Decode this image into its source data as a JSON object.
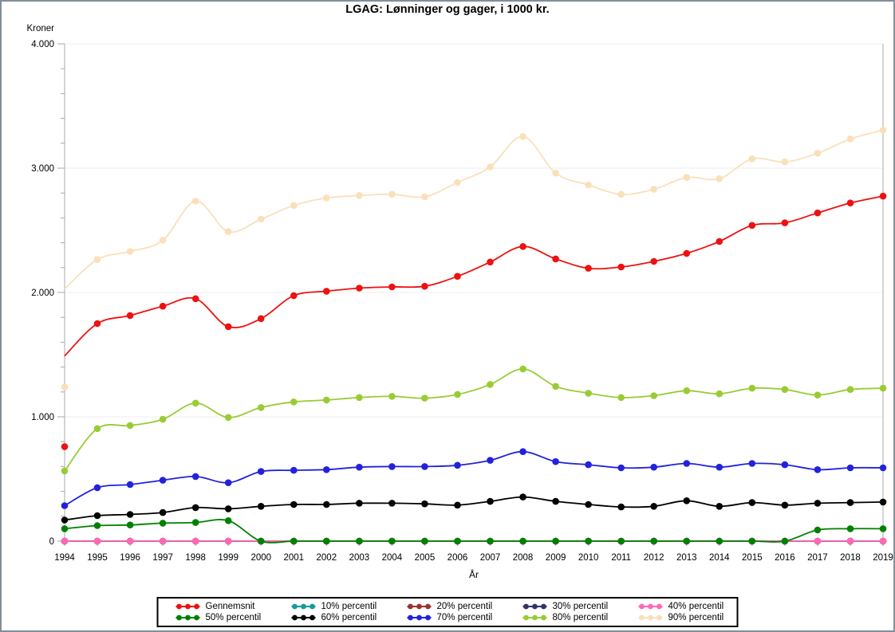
{
  "chart_data": {
    "type": "line",
    "title": "LGAG: Lønninger og gager, i 1000 kr.",
    "xlabel": "År",
    "ylabel": "Kroner",
    "x": [
      1994,
      1995,
      1996,
      1997,
      1998,
      1999,
      2000,
      2001,
      2002,
      2003,
      2004,
      2005,
      2006,
      2007,
      2008,
      2009,
      2010,
      2011,
      2012,
      2013,
      2014,
      2015,
      2016,
      2017,
      2018,
      2019
    ],
    "ylim": [
      0,
      4000
    ],
    "ytick_values": [
      0,
      1000,
      2000,
      3000,
      4000
    ],
    "ytick_labels": [
      "0",
      "1.000",
      "2.000",
      "3.000",
      "4.000"
    ],
    "minor_tick_step": 200,
    "grid": "horizontal-only",
    "gridline_color": "#ececec",
    "axis_color": "#a8a8a8",
    "frame_color": "#848e98",
    "legend_position": "bottom-center",
    "legend_columns": 5,
    "series": [
      {
        "name": "Gennemsnit",
        "color": "#ee1111",
        "values": [
          760,
          1750,
          1815,
          1890,
          1950,
          1725,
          1790,
          1975,
          2010,
          2035,
          2045,
          2050,
          2130,
          2245,
          2370,
          2270,
          2195,
          2205,
          2250,
          2315,
          2410,
          2540,
          2560,
          2640,
          2720,
          2775
        ],
        "line_start_1994": 1490
      },
      {
        "name": "10% percentil",
        "color": "#149a9a",
        "values": [
          0,
          0,
          0,
          0,
          0,
          0,
          0,
          0,
          0,
          0,
          0,
          0,
          0,
          0,
          0,
          0,
          0,
          0,
          0,
          0,
          0,
          0,
          0,
          0,
          0,
          0
        ]
      },
      {
        "name": "20% percentil",
        "color": "#993333",
        "values": [
          0,
          0,
          0,
          0,
          0,
          0,
          0,
          0,
          0,
          0,
          0,
          0,
          0,
          0,
          0,
          0,
          0,
          0,
          0,
          0,
          0,
          0,
          0,
          0,
          0,
          0
        ]
      },
      {
        "name": "30% percentil",
        "color": "#333366",
        "values": [
          0,
          0,
          0,
          0,
          0,
          0,
          0,
          0,
          0,
          0,
          0,
          0,
          0,
          0,
          0,
          0,
          0,
          0,
          0,
          0,
          0,
          0,
          0,
          0,
          0,
          0
        ]
      },
      {
        "name": "40% percentil",
        "color": "#ff69b4",
        "values": [
          0,
          0,
          0,
          0,
          0,
          0,
          0,
          0,
          0,
          0,
          0,
          0,
          0,
          0,
          0,
          0,
          0,
          0,
          0,
          0,
          0,
          0,
          0,
          0,
          0,
          0
        ]
      },
      {
        "name": "50% percentil",
        "color": "#008000",
        "values": [
          100,
          125,
          130,
          145,
          150,
          165,
          0,
          0,
          0,
          0,
          0,
          0,
          0,
          0,
          0,
          0,
          0,
          0,
          0,
          0,
          0,
          0,
          0,
          90,
          100,
          100
        ]
      },
      {
        "name": "60% percentil",
        "color": "#000000",
        "values": [
          170,
          205,
          215,
          230,
          270,
          260,
          280,
          295,
          295,
          305,
          305,
          300,
          290,
          320,
          355,
          320,
          295,
          275,
          280,
          325,
          280,
          310,
          290,
          305,
          310,
          315
        ]
      },
      {
        "name": "70% percentil",
        "color": "#2222dd",
        "values": [
          285,
          430,
          455,
          490,
          520,
          470,
          560,
          570,
          575,
          595,
          600,
          600,
          610,
          650,
          720,
          640,
          615,
          590,
          595,
          625,
          595,
          625,
          615,
          575,
          590,
          590
        ]
      },
      {
        "name": "80% percentil",
        "color": "#99cc33",
        "values": [
          565,
          905,
          930,
          980,
          1110,
          995,
          1075,
          1120,
          1135,
          1155,
          1165,
          1150,
          1180,
          1260,
          1385,
          1245,
          1190,
          1155,
          1170,
          1210,
          1185,
          1230,
          1220,
          1175,
          1220,
          1230
        ]
      },
      {
        "name": "90% percentil",
        "color": "#f9e0ba",
        "values": [
          1240,
          2265,
          2330,
          2420,
          2735,
          2490,
          2590,
          2700,
          2760,
          2780,
          2790,
          2770,
          2885,
          3010,
          3255,
          2960,
          2865,
          2790,
          2830,
          2925,
          2915,
          3075,
          3050,
          3120,
          3235,
          3305
        ],
        "line_start_1994": 2030
      }
    ]
  }
}
